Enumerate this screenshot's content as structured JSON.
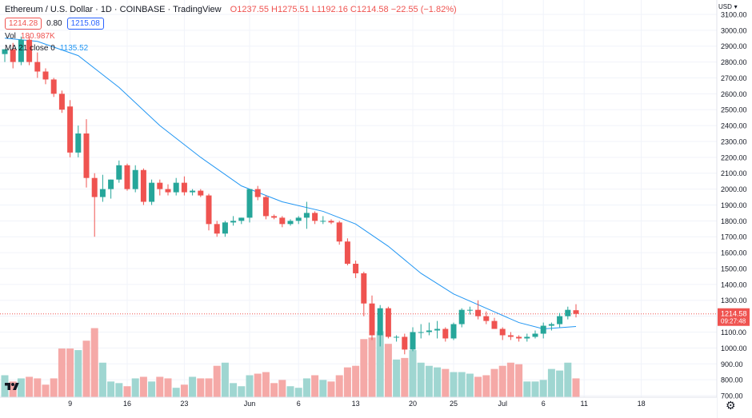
{
  "header": {
    "symbol": "Ethereum / U.S. Dollar · 1D · COINBASE · TradingView",
    "ohlc": "O1237.55 H1275.51 L1192.16 C1214.58 −22.55 (−1.82%)"
  },
  "quote": {
    "bid": "1214.28",
    "spread": "0.80",
    "ask": "1215.08"
  },
  "volume_legend": {
    "label": "Vol",
    "value": "180.987K"
  },
  "ma_legend": {
    "label": "MA 21 close 0",
    "value": "1135.52"
  },
  "axis_currency": "USD",
  "last_price": {
    "label": "1214.58",
    "countdown": "09:27:48"
  },
  "colors": {
    "up": "#26a69a",
    "down": "#ef5350",
    "ma": "#2196f3",
    "vol_up": "#9fd6d1",
    "vol_down": "#f5a9a7"
  },
  "icons": {
    "settings": "gear-icon",
    "logo": "tradingview-logo-icon"
  },
  "chart_data": {
    "type": "candlestick",
    "title": "Ethereum / U.S. Dollar · 1D · COINBASE · TradingView",
    "y_ticks": [
      700,
      800,
      900,
      1000,
      1100,
      1200,
      1300,
      1400,
      1500,
      1600,
      1700,
      1800,
      1900,
      2000,
      2100,
      2200,
      2300,
      2400,
      2500,
      2600,
      2700,
      2800,
      2900,
      3000,
      3100
    ],
    "y_tick_labels": [
      "700.00",
      "800.00",
      "900.00",
      "1000.00",
      "1100.00",
      "1200.00",
      "1300.00",
      "1400.00",
      "1500.00",
      "1600.00",
      "1700.00",
      "1800.00",
      "1900.00",
      "2000.00",
      "2100.00",
      "2200.00",
      "2300.00",
      "2400.00",
      "2500.00",
      "2600.00",
      "2700.00",
      "2800.00",
      "2900.00",
      "3000.00",
      "3100.00"
    ],
    "x_tick_labels": [
      {
        "label": "9",
        "day": 9
      },
      {
        "label": "16",
        "day": 16
      },
      {
        "label": "23",
        "day": 23
      },
      {
        "label": "Jun",
        "day": 31
      },
      {
        "label": "6",
        "day": 37
      },
      {
        "label": "13",
        "day": 44
      },
      {
        "label": "20",
        "day": 51
      },
      {
        "label": "25",
        "day": 56
      },
      {
        "label": "Jul",
        "day": 62
      },
      {
        "label": "6",
        "day": 67
      },
      {
        "label": "11",
        "day": 72
      },
      {
        "label": "18",
        "day": 79
      }
    ],
    "candles": [
      {
        "day": 1,
        "o": 2850,
        "h": 2880,
        "l": 2800,
        "c": 2880,
        "v": 820
      },
      {
        "day": 2,
        "o": 2880,
        "h": 2920,
        "l": 2760,
        "c": 2800,
        "v": 780
      },
      {
        "day": 3,
        "o": 2800,
        "h": 2960,
        "l": 2780,
        "c": 2940,
        "v": 800
      },
      {
        "day": 4,
        "o": 2940,
        "h": 2960,
        "l": 2780,
        "c": 2800,
        "v": 810
      },
      {
        "day": 5,
        "o": 2800,
        "h": 2860,
        "l": 2700,
        "c": 2740,
        "v": 800
      },
      {
        "day": 6,
        "o": 2740,
        "h": 2760,
        "l": 2660,
        "c": 2690,
        "v": 760
      },
      {
        "day": 7,
        "o": 2690,
        "h": 2700,
        "l": 2580,
        "c": 2600,
        "v": 800
      },
      {
        "day": 8,
        "o": 2600,
        "h": 2620,
        "l": 2480,
        "c": 2500,
        "v": 990
      },
      {
        "day": 9,
        "o": 2520,
        "h": 2560,
        "l": 2200,
        "c": 2230,
        "v": 990
      },
      {
        "day": 10,
        "o": 2230,
        "h": 2400,
        "l": 2200,
        "c": 2350,
        "v": 980
      },
      {
        "day": 11,
        "o": 2350,
        "h": 2440,
        "l": 2010,
        "c": 2070,
        "v": 1040
      },
      {
        "day": 12,
        "o": 2070,
        "h": 2100,
        "l": 1700,
        "c": 1950,
        "v": 1120
      },
      {
        "day": 13,
        "o": 1950,
        "h": 2090,
        "l": 1920,
        "c": 2000,
        "v": 900
      },
      {
        "day": 14,
        "o": 2000,
        "h": 2060,
        "l": 1940,
        "c": 2060,
        "v": 780
      },
      {
        "day": 15,
        "o": 2060,
        "h": 2180,
        "l": 2040,
        "c": 2150,
        "v": 770
      },
      {
        "day": 16,
        "o": 2150,
        "h": 2160,
        "l": 1990,
        "c": 2000,
        "v": 750
      },
      {
        "day": 17,
        "o": 2000,
        "h": 2150,
        "l": 1980,
        "c": 2120,
        "v": 800
      },
      {
        "day": 18,
        "o": 2120,
        "h": 2130,
        "l": 1900,
        "c": 1920,
        "v": 810
      },
      {
        "day": 19,
        "o": 1920,
        "h": 2060,
        "l": 1900,
        "c": 2040,
        "v": 780
      },
      {
        "day": 20,
        "o": 2040,
        "h": 2060,
        "l": 1960,
        "c": 2000,
        "v": 810
      },
      {
        "day": 21,
        "o": 2000,
        "h": 2030,
        "l": 1960,
        "c": 1980,
        "v": 800
      },
      {
        "day": 22,
        "o": 1980,
        "h": 2070,
        "l": 1960,
        "c": 2040,
        "v": 740
      },
      {
        "day": 23,
        "o": 2040,
        "h": 2080,
        "l": 1960,
        "c": 1980,
        "v": 760
      },
      {
        "day": 24,
        "o": 1980,
        "h": 2000,
        "l": 1960,
        "c": 1990,
        "v": 810
      },
      {
        "day": 25,
        "o": 1990,
        "h": 2000,
        "l": 1950,
        "c": 1960,
        "v": 800
      },
      {
        "day": 26,
        "o": 1960,
        "h": 1970,
        "l": 1740,
        "c": 1780,
        "v": 800
      },
      {
        "day": 27,
        "o": 1780,
        "h": 1800,
        "l": 1700,
        "c": 1720,
        "v": 880
      },
      {
        "day": 28,
        "o": 1720,
        "h": 1800,
        "l": 1700,
        "c": 1790,
        "v": 900
      },
      {
        "day": 29,
        "o": 1790,
        "h": 1830,
        "l": 1770,
        "c": 1800,
        "v": 770
      },
      {
        "day": 30,
        "o": 1800,
        "h": 1820,
        "l": 1780,
        "c": 1820,
        "v": 750
      },
      {
        "day": 31,
        "o": 1820,
        "h": 2000,
        "l": 1790,
        "c": 2000,
        "v": 820
      },
      {
        "day": 32,
        "o": 2000,
        "h": 2020,
        "l": 1930,
        "c": 1950,
        "v": 830
      },
      {
        "day": 33,
        "o": 1950,
        "h": 1960,
        "l": 1810,
        "c": 1830,
        "v": 840
      },
      {
        "day": 34,
        "o": 1830,
        "h": 1840,
        "l": 1810,
        "c": 1820,
        "v": 770
      },
      {
        "day": 35,
        "o": 1820,
        "h": 1830,
        "l": 1760,
        "c": 1780,
        "v": 790
      },
      {
        "day": 36,
        "o": 1780,
        "h": 1810,
        "l": 1770,
        "c": 1800,
        "v": 750
      },
      {
        "day": 37,
        "o": 1800,
        "h": 1830,
        "l": 1780,
        "c": 1820,
        "v": 740
      },
      {
        "day": 38,
        "o": 1820,
        "h": 1920,
        "l": 1750,
        "c": 1850,
        "v": 800
      },
      {
        "day": 39,
        "o": 1850,
        "h": 1860,
        "l": 1780,
        "c": 1800,
        "v": 820
      },
      {
        "day": 40,
        "o": 1800,
        "h": 1830,
        "l": 1780,
        "c": 1800,
        "v": 790
      },
      {
        "day": 41,
        "o": 1800,
        "h": 1810,
        "l": 1780,
        "c": 1790,
        "v": 780
      },
      {
        "day": 42,
        "o": 1790,
        "h": 1800,
        "l": 1650,
        "c": 1670,
        "v": 820
      },
      {
        "day": 43,
        "o": 1670,
        "h": 1690,
        "l": 1520,
        "c": 1530,
        "v": 870
      },
      {
        "day": 44,
        "o": 1530,
        "h": 1550,
        "l": 1440,
        "c": 1470,
        "v": 880
      },
      {
        "day": 45,
        "o": 1470,
        "h": 1480,
        "l": 1200,
        "c": 1280,
        "v": 1050
      },
      {
        "day": 46,
        "o": 1280,
        "h": 1330,
        "l": 1050,
        "c": 1080,
        "v": 1060
      },
      {
        "day": 47,
        "o": 1080,
        "h": 1270,
        "l": 1010,
        "c": 1250,
        "v": 1100
      },
      {
        "day": 48,
        "o": 1250,
        "h": 1260,
        "l": 1060,
        "c": 1070,
        "v": 1020
      },
      {
        "day": 49,
        "o": 1070,
        "h": 1080,
        "l": 1040,
        "c": 1070,
        "v": 920
      },
      {
        "day": 50,
        "o": 1070,
        "h": 1090,
        "l": 960,
        "c": 990,
        "v": 930
      },
      {
        "day": 51,
        "o": 990,
        "h": 1130,
        "l": 980,
        "c": 1100,
        "v": 980
      },
      {
        "day": 52,
        "o": 1100,
        "h": 1150,
        "l": 1060,
        "c": 1100,
        "v": 900
      },
      {
        "day": 53,
        "o": 1100,
        "h": 1160,
        "l": 1080,
        "c": 1110,
        "v": 880
      },
      {
        "day": 54,
        "o": 1110,
        "h": 1170,
        "l": 1060,
        "c": 1120,
        "v": 870
      },
      {
        "day": 55,
        "o": 1120,
        "h": 1130,
        "l": 1040,
        "c": 1060,
        "v": 860
      },
      {
        "day": 56,
        "o": 1060,
        "h": 1160,
        "l": 1050,
        "c": 1150,
        "v": 840
      },
      {
        "day": 57,
        "o": 1150,
        "h": 1250,
        "l": 1130,
        "c": 1240,
        "v": 840
      },
      {
        "day": 58,
        "o": 1240,
        "h": 1260,
        "l": 1210,
        "c": 1240,
        "v": 830
      },
      {
        "day": 59,
        "o": 1240,
        "h": 1300,
        "l": 1180,
        "c": 1200,
        "v": 810
      },
      {
        "day": 60,
        "o": 1200,
        "h": 1230,
        "l": 1150,
        "c": 1170,
        "v": 820
      },
      {
        "day": 61,
        "o": 1170,
        "h": 1190,
        "l": 1120,
        "c": 1120,
        "v": 860
      },
      {
        "day": 62,
        "o": 1120,
        "h": 1130,
        "l": 1050,
        "c": 1080,
        "v": 880
      },
      {
        "day": 63,
        "o": 1080,
        "h": 1100,
        "l": 1050,
        "c": 1070,
        "v": 900
      },
      {
        "day": 64,
        "o": 1070,
        "h": 1080,
        "l": 1040,
        "c": 1060,
        "v": 890
      },
      {
        "day": 65,
        "o": 1060,
        "h": 1090,
        "l": 1040,
        "c": 1070,
        "v": 780
      },
      {
        "day": 66,
        "o": 1070,
        "h": 1110,
        "l": 1060,
        "c": 1090,
        "v": 780
      },
      {
        "day": 67,
        "o": 1090,
        "h": 1160,
        "l": 1060,
        "c": 1140,
        "v": 790
      },
      {
        "day": 68,
        "o": 1140,
        "h": 1160,
        "l": 1110,
        "c": 1150,
        "v": 860
      },
      {
        "day": 69,
        "o": 1150,
        "h": 1220,
        "l": 1130,
        "c": 1200,
        "v": 850
      },
      {
        "day": 70,
        "o": 1200,
        "h": 1260,
        "l": 1180,
        "c": 1240,
        "v": 900
      },
      {
        "day": 71,
        "o": 1237.55,
        "h": 1275.51,
        "l": 1192.16,
        "c": 1214.58,
        "v": 800
      }
    ],
    "ma21": [
      {
        "day": 1,
        "v": 2950
      },
      {
        "day": 5,
        "v": 2930
      },
      {
        "day": 10,
        "v": 2840
      },
      {
        "day": 15,
        "v": 2640
      },
      {
        "day": 20,
        "v": 2400
      },
      {
        "day": 25,
        "v": 2200
      },
      {
        "day": 30,
        "v": 2020
      },
      {
        "day": 35,
        "v": 1920
      },
      {
        "day": 40,
        "v": 1860
      },
      {
        "day": 44,
        "v": 1780
      },
      {
        "day": 48,
        "v": 1640
      },
      {
        "day": 52,
        "v": 1470
      },
      {
        "day": 56,
        "v": 1340
      },
      {
        "day": 60,
        "v": 1250
      },
      {
        "day": 64,
        "v": 1160
      },
      {
        "day": 67,
        "v": 1120
      },
      {
        "day": 71,
        "v": 1135.52
      }
    ],
    "price_range": [
      690,
      3150
    ],
    "volume_range": [
      680,
      1250
    ],
    "last_price": 1214.58,
    "grid": true
  }
}
